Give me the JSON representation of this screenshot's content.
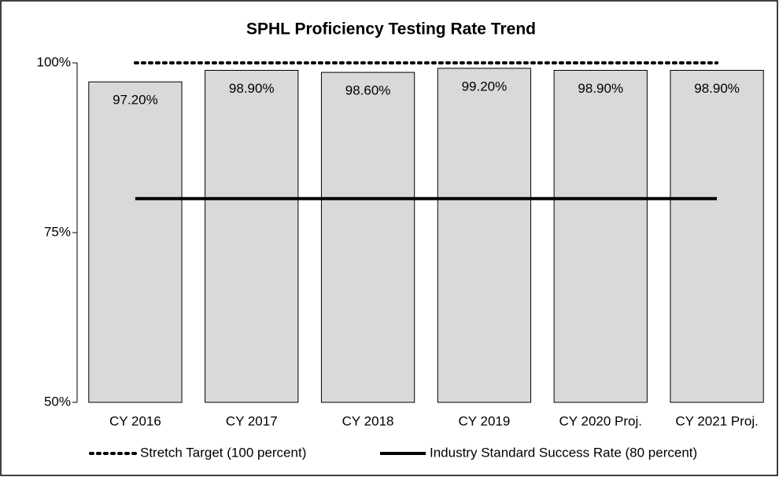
{
  "chart_data": {
    "type": "bar",
    "title": "SPHL Proficiency Testing Rate Trend",
    "categories": [
      "CY 2016",
      "CY 2017",
      "CY 2018",
      "CY 2019",
      "CY 2020 Proj.",
      "CY 2021 Proj."
    ],
    "values": [
      97.2,
      98.9,
      98.6,
      99.2,
      98.9,
      98.9
    ],
    "value_labels": [
      "97.20%",
      "98.90%",
      "98.60%",
      "99.20%",
      "98.90%",
      "98.90%"
    ],
    "color": "#d9d9d9",
    "lines": [
      {
        "name": "Stretch Target (100 percent)",
        "color": "#000000",
        "style": "dotted",
        "values": [
          100,
          100,
          100,
          100,
          100,
          100
        ]
      },
      {
        "name": "Industry Standard Success Rate (80 percent)",
        "color": "#000000",
        "style": "solid",
        "values": [
          80,
          80,
          80,
          80,
          80,
          80
        ]
      }
    ],
    "ylim": [
      50,
      100
    ],
    "yticks": [
      {
        "value": 50,
        "label": "50%"
      },
      {
        "value": 75,
        "label": "75%"
      },
      {
        "value": 100,
        "label": "100%"
      }
    ],
    "grid": false
  }
}
